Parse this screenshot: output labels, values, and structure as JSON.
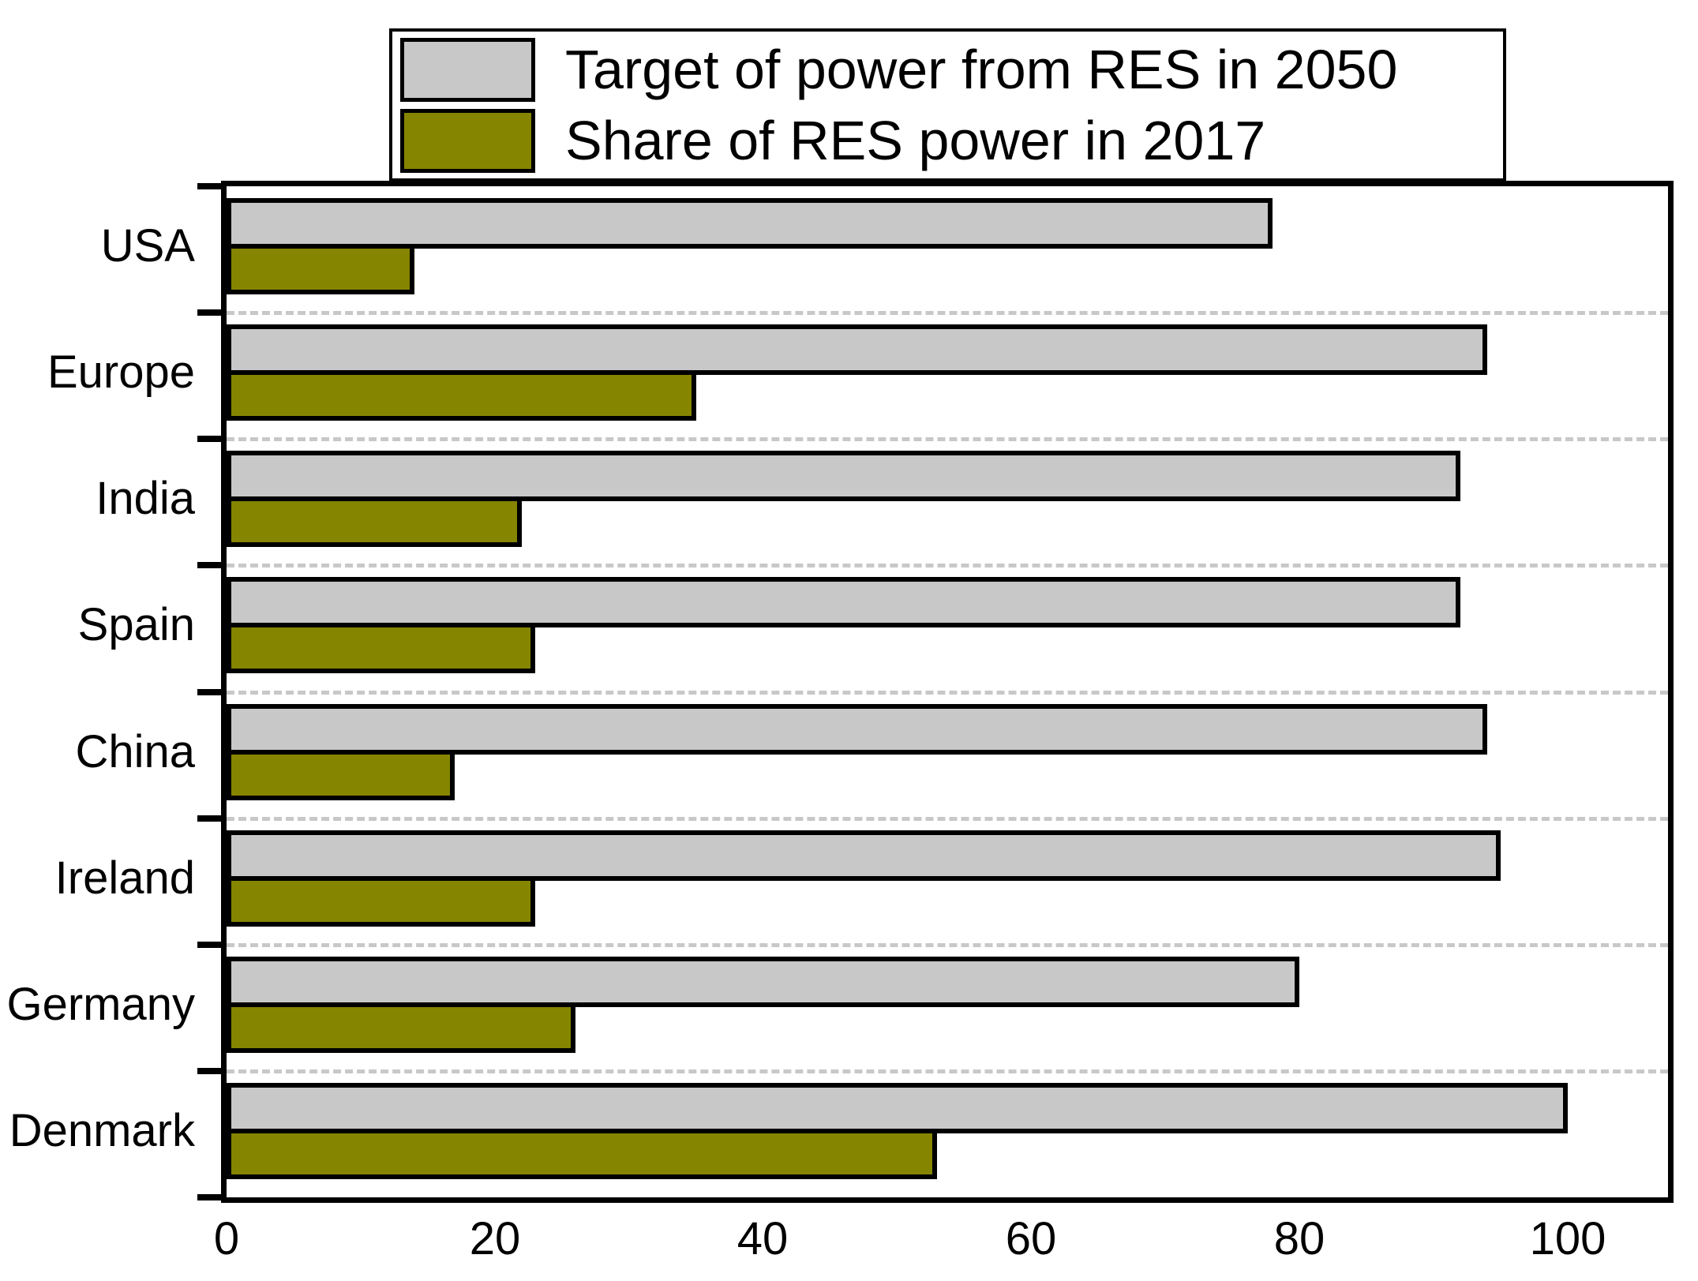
{
  "chart_data": {
    "type": "bar",
    "orientation": "horizontal",
    "title": "",
    "xlabel": "",
    "ylabel": "",
    "categories": [
      "USA",
      "Europe",
      "India",
      "Spain",
      "China",
      "Ireland",
      "Germany",
      "Denmark"
    ],
    "series": [
      {
        "name": "Target of power from RES in 2050",
        "color": "#c8c8c8",
        "values": [
          78,
          94,
          92,
          92,
          94,
          95,
          80,
          100
        ]
      },
      {
        "name": "Share of RES power in 2017",
        "color": "#858500",
        "values": [
          14,
          35,
          22,
          23,
          17,
          23,
          26,
          53
        ]
      }
    ],
    "x_ticks": [
      0,
      20,
      40,
      60,
      80,
      100
    ],
    "xlim": [
      0,
      107.5
    ],
    "grid": "dashed light-gray horizontal separators between category groups",
    "legend_position": "top",
    "frame_color": "#000000",
    "grid_color": "#c8c8c8",
    "background_color": "#ffffff"
  }
}
